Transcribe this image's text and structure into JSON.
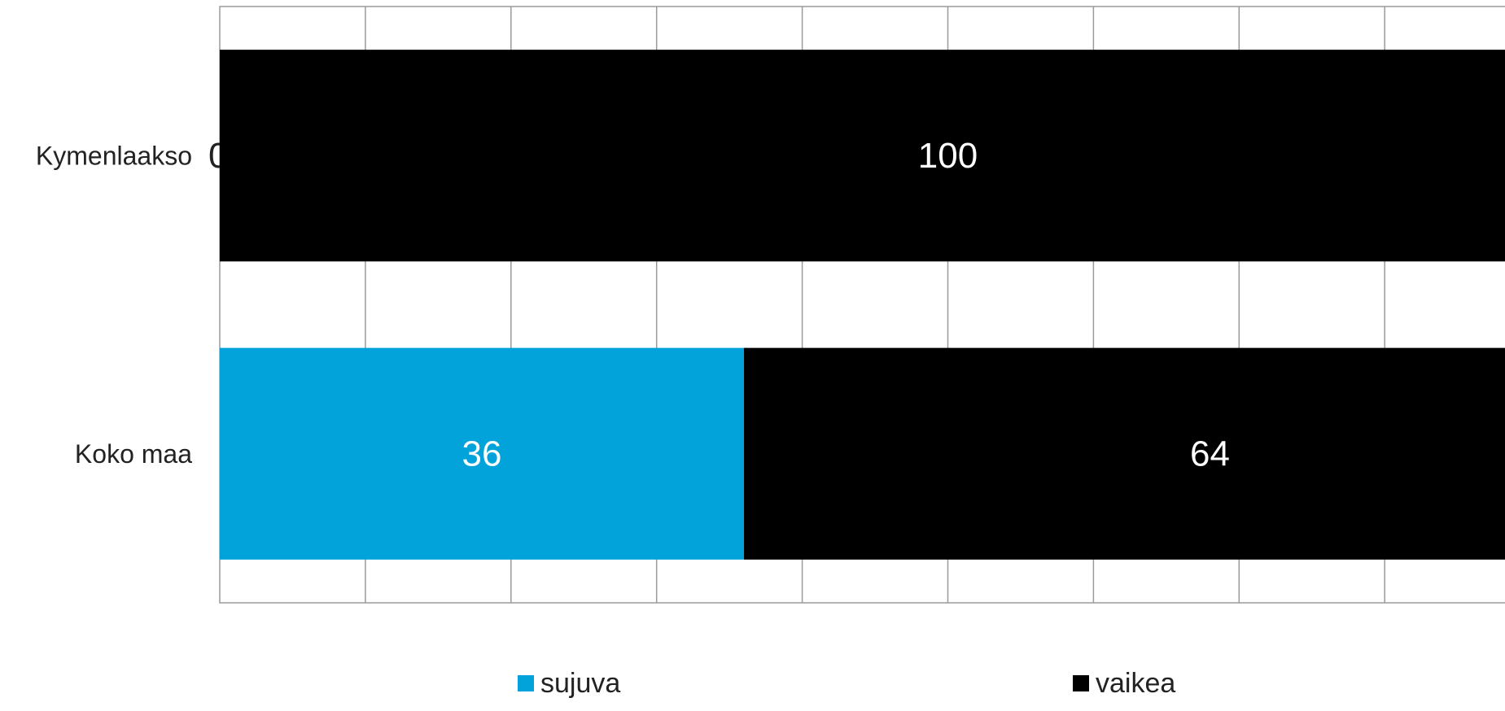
{
  "chart_data": {
    "type": "bar",
    "orientation": "horizontal",
    "stacked": true,
    "categories": [
      "Kymenlaakso",
      "Koko maa"
    ],
    "series": [
      {
        "name": "sujuva",
        "values": [
          0,
          36
        ],
        "color": "#02A3DA"
      },
      {
        "name": "vaikea",
        "values": [
          100,
          64
        ],
        "color": "#000000"
      }
    ],
    "xlim": [
      0,
      100
    ],
    "grid": true,
    "legend_position": "bottom",
    "title": "",
    "xlabel": "",
    "ylabel": ""
  }
}
